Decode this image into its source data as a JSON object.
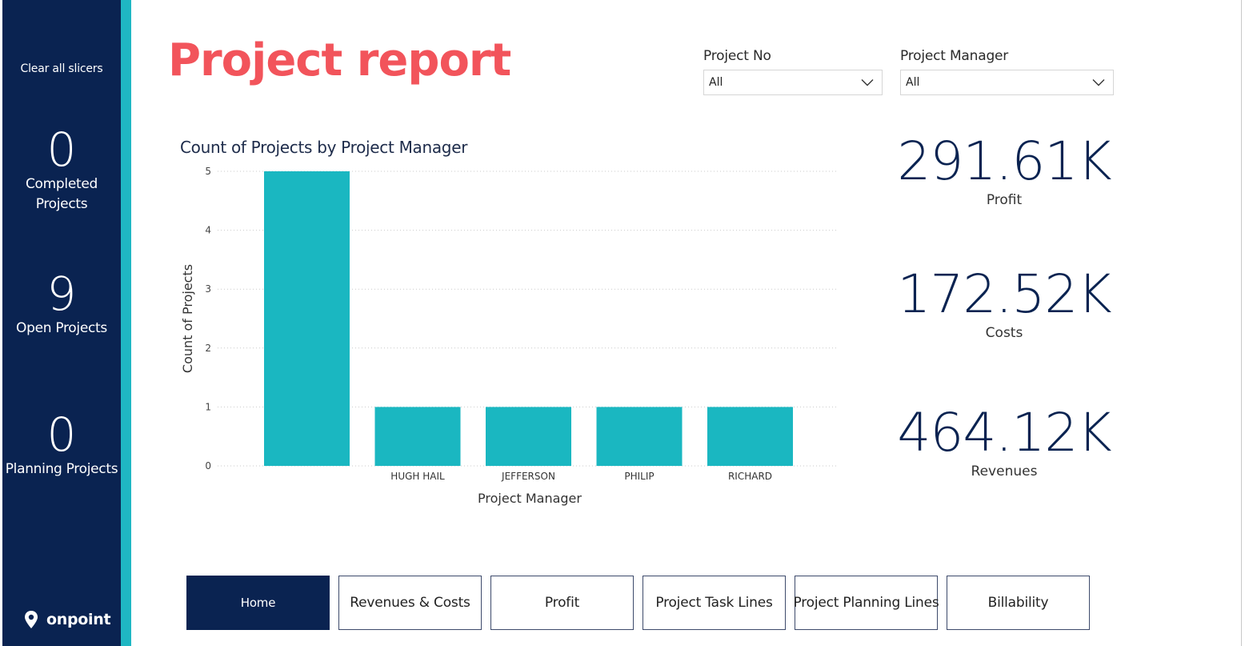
{
  "sidebar": {
    "clear_slicers_label": "Clear all slicers",
    "completed": {
      "value": "0",
      "label_line1": "Completed",
      "label_line2": "Projects"
    },
    "open": {
      "value": "9",
      "label": "Open Projects"
    },
    "planning": {
      "value": "0",
      "label": "Planning Projects"
    },
    "logo_text": "onpoint"
  },
  "header": {
    "title": "Project report"
  },
  "slicers": {
    "project_no": {
      "title": "Project No",
      "value": "All"
    },
    "project_manager": {
      "title": "Project Manager",
      "value": "All"
    }
  },
  "kpis": {
    "profit": {
      "value": "291.61K",
      "label": "Profit"
    },
    "costs": {
      "value": "172.52K",
      "label": "Costs"
    },
    "revenues": {
      "value": "464.12K",
      "label": "Revenues"
    }
  },
  "chart_data": {
    "type": "bar",
    "title": "Count of Projects by Project Manager",
    "xlabel": "Project Manager",
    "ylabel": "Count of Projects",
    "categories": [
      "",
      "HUGH HAIL",
      "JEFFERSON",
      "PHILIP",
      "RICHARD"
    ],
    "values": [
      5,
      1,
      1,
      1,
      1
    ],
    "ylim": [
      0,
      5
    ],
    "yticks": [
      0,
      1,
      2,
      3,
      4,
      5
    ],
    "grid": true,
    "color": "#1ab7c1"
  },
  "nav": {
    "buttons": [
      {
        "label": "Home",
        "active": true
      },
      {
        "label": "Revenues & Costs",
        "active": false
      },
      {
        "label": "Profit",
        "active": false
      },
      {
        "label": "Project Task Lines",
        "active": false
      },
      {
        "label": "Project Planning Lines",
        "active": false
      },
      {
        "label": "Billability",
        "active": false
      }
    ]
  },
  "colors": {
    "sidebar_bg": "#0a2351",
    "accent_teal": "#1fb7c3",
    "title_red": "#f2545b",
    "bar": "#1ab7c1"
  }
}
